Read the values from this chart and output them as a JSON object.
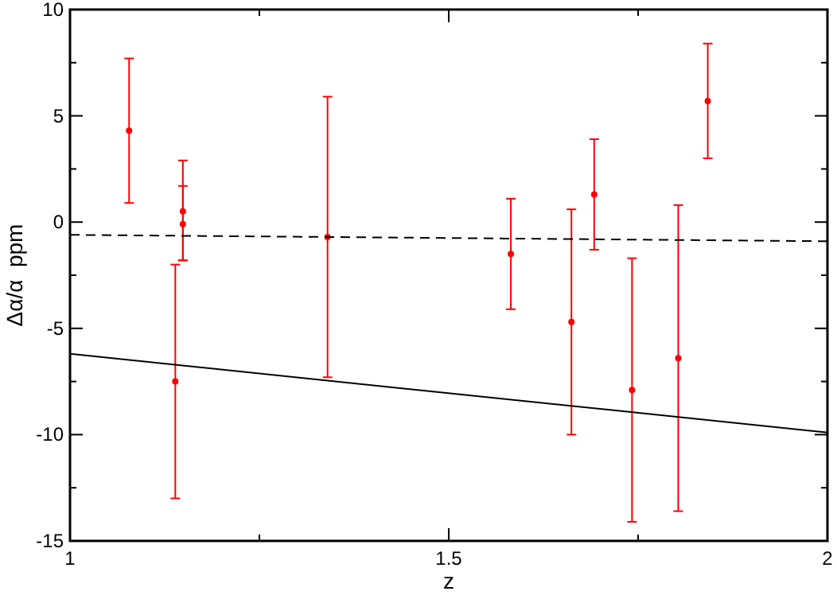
{
  "chart_data": {
    "type": "scatter",
    "xlabel": "z",
    "ylabel": "Δα/α  ppm",
    "xlim": [
      1,
      2
    ],
    "ylim": [
      -15,
      10
    ],
    "xticks": [
      1,
      {
        "value": 1.25,
        "label": null
      },
      1.5,
      {
        "value": 1.75,
        "label": null
      },
      2
    ],
    "yticks": [
      -15,
      {
        "value": -12.5,
        "label": null
      },
      -10,
      {
        "value": -7.5,
        "label": null
      },
      -5,
      {
        "value": -2.5,
        "label": null
      },
      0,
      {
        "value": 2.5,
        "label": null
      },
      5,
      {
        "value": 7.5,
        "label": null
      },
      10
    ],
    "grid": false,
    "series": [
      {
        "color": "#ff0000",
        "marker": "circle",
        "x": [
          1.078,
          1.139,
          1.149,
          1.149,
          1.34,
          1.582,
          1.662,
          1.692,
          1.742,
          1.803,
          1.842
        ],
        "values": [
          4.3,
          -7.5,
          0.5,
          -0.1,
          -0.7,
          -1.5,
          -4.7,
          1.3,
          -7.9,
          -6.4,
          5.7
        ],
        "errors": [
          [
            0.9,
            7.7
          ],
          [
            -13,
            -2
          ],
          [
            -1.8,
            2.9
          ],
          [
            -1.8,
            1.7
          ],
          [
            -7.3,
            5.9
          ],
          [
            -4.1,
            1.1
          ],
          [
            -10,
            0.6
          ],
          [
            -1.3,
            3.9
          ],
          [
            -14.1,
            -1.7
          ],
          [
            -13.6,
            0.8
          ],
          [
            3,
            8.4
          ]
        ]
      },
      {
        "type": "line",
        "color": "#000000",
        "line_style": "dashed",
        "x": [
          1,
          2
        ],
        "values": [
          -0.6,
          -0.9
        ]
      },
      {
        "type": "line",
        "color": "#000000",
        "line_style": "solid",
        "x": [
          1,
          2
        ],
        "values": [
          -6.2,
          -9.9
        ]
      }
    ]
  }
}
